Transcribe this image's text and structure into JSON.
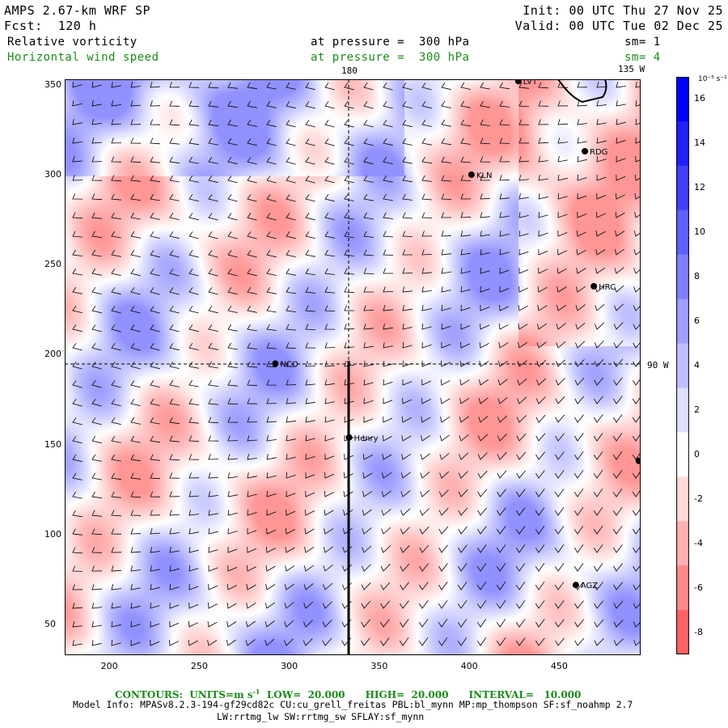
{
  "header": {
    "model": "AMPS 2.67-km WRF SP",
    "forecast": "Fcst:  120 h",
    "init": "Init: 00 UTC Thu 27 Nov 25",
    "valid": "Valid: 00 UTC Tue 02 Dec 25",
    "field1": {
      "name": "Relative vorticity",
      "level": "at pressure =  300 hPa",
      "smooth": "sm= 1"
    },
    "field2": {
      "name": "Horizontal wind speed",
      "level": "at pressure =  300 hPa",
      "smooth": "sm= 4"
    }
  },
  "map": {
    "x_axis": {
      "ticks": [
        "200",
        "250",
        "300",
        "350",
        "400",
        "450"
      ],
      "range": [
        175,
        495
      ]
    },
    "y_axis": {
      "ticks": [
        "50",
        "100",
        "150",
        "200",
        "250",
        "300",
        "350"
      ],
      "range": [
        33,
        353
      ]
    },
    "meridian_labels": {
      "top": "180",
      "top_right": "135 W",
      "right": "90 W"
    },
    "stations": [
      {
        "id": "LVT",
        "x": 427,
        "y": 352
      },
      {
        "id": "RDG",
        "x": 464,
        "y": 313
      },
      {
        "id": "KLN",
        "x": 401,
        "y": 300
      },
      {
        "id": "HRC",
        "x": 469,
        "y": 238
      },
      {
        "id": "NCO",
        "x": 292,
        "y": 195
      },
      {
        "id": "Henry",
        "x": 333,
        "y": 154
      },
      {
        "id": "AGZ",
        "x": 459,
        "y": 72
      }
    ],
    "edge_marker": {
      "x": 494,
      "y": 141
    }
  },
  "colorbar": {
    "unit": "10⁻⁵ s⁻¹",
    "labels": [
      "16",
      "14",
      "12",
      "10",
      "8",
      "6",
      "4",
      "2",
      "0",
      "-2",
      "-4",
      "-6",
      "-8"
    ],
    "positive_color": "#0000ff",
    "negative_color": "#ff3c3c"
  },
  "footer": {
    "contours_units": "CONTOURS:  UNITS=m s",
    "contours_rest": "  LOW=  20.000      HIGH=  20.000      INTERVAL=   10.000",
    "model_info": "Model Info: MPASv8.2.3-194-gf29cd82c CU:cu_grell_freitas PBL:bl_mynn MP:mp_thompson SF:sf_noahmp 2.7",
    "model_info2": "LW:rrtmg_lw SW:rrtmg_sw SFLAY:sf_mynn"
  }
}
